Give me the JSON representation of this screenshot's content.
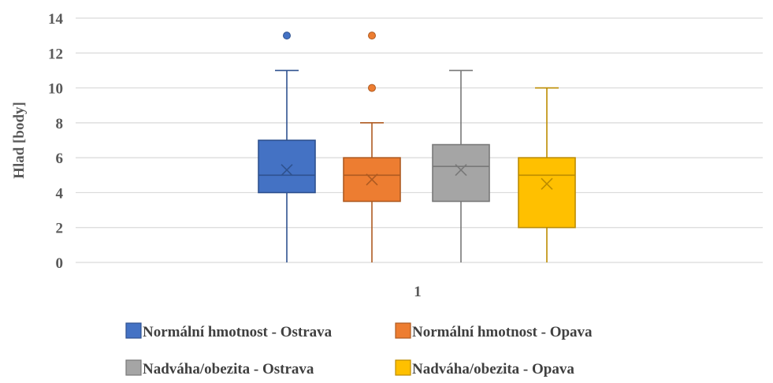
{
  "chart_data": {
    "type": "boxplot",
    "ylabel": "Hlad [body]",
    "ylim": [
      0,
      14
    ],
    "yticks": [
      0,
      2,
      4,
      6,
      8,
      10,
      12,
      14
    ],
    "categories": [
      "1"
    ],
    "grid": true,
    "legend_position": "bottom",
    "series": [
      {
        "name": "Normální hmotnost - Ostrava",
        "color": "#4472C4",
        "edge": "#2F528F",
        "min": 0,
        "q1": 4,
        "median": 5,
        "q3": 7,
        "max": 11,
        "mean": 5.3,
        "outliers": [
          13
        ]
      },
      {
        "name": "Normální hmotnost - Opava",
        "color": "#ED7D31",
        "edge": "#AE5A21",
        "min": 0,
        "q1": 3.5,
        "median": 5,
        "q3": 6,
        "max": 8,
        "mean": 4.75,
        "outliers": [
          10,
          13
        ]
      },
      {
        "name": "Nadváha/obezita - Ostrava",
        "color": "#A5A5A5",
        "edge": "#787878",
        "min": 0,
        "q1": 3.5,
        "median": 5.5,
        "q3": 6.75,
        "max": 11,
        "mean": 5.3,
        "outliers": []
      },
      {
        "name": "Nadváha/obezita - Opava",
        "color": "#FFC000",
        "edge": "#BC8C00",
        "min": 0,
        "q1": 2,
        "median": 5,
        "q3": 6,
        "max": 10,
        "mean": 4.5,
        "outliers": []
      }
    ]
  }
}
